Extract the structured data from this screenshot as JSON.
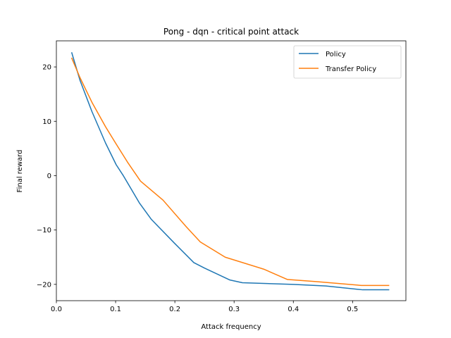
{
  "chart_data": {
    "type": "line",
    "title": "Pong - dqn - critical point attack",
    "xlabel": "Attack frequency",
    "ylabel": "Final reward",
    "xlim": [
      0.0,
      0.59
    ],
    "ylim": [
      -23,
      24.8
    ],
    "xticks": [
      0.0,
      0.1,
      0.2,
      0.3,
      0.4,
      0.5
    ],
    "xtick_labels": [
      "0.0",
      "0.1",
      "0.2",
      "0.3",
      "0.4",
      "0.5"
    ],
    "yticks": [
      -20,
      -10,
      0,
      10,
      20
    ],
    "ytick_labels": [
      "−20",
      "−10",
      "0",
      "10",
      "20"
    ],
    "grid": false,
    "legend_position": "top-right",
    "series": [
      {
        "name": "Policy",
        "color": "#1f77b4",
        "x": [
          0.026,
          0.04,
          0.06,
          0.083,
          0.101,
          0.113,
          0.14,
          0.16,
          0.2,
          0.232,
          0.25,
          0.293,
          0.314,
          0.4,
          0.455,
          0.517,
          0.561
        ],
        "y": [
          22.6,
          17.5,
          11.8,
          6.0,
          2.0,
          0.0,
          -5.0,
          -8.0,
          -12.5,
          -16.0,
          -17.0,
          -19.2,
          -19.7,
          -20.0,
          -20.3,
          -21.0,
          -21.0
        ]
      },
      {
        "name": "Transfer Policy",
        "color": "#ff7f0e",
        "x": [
          0.026,
          0.04,
          0.06,
          0.083,
          0.101,
          0.12,
          0.142,
          0.18,
          0.22,
          0.243,
          0.285,
          0.35,
          0.39,
          0.44,
          0.515,
          0.561
        ],
        "y": [
          21.6,
          18.0,
          13.5,
          9.0,
          5.8,
          2.5,
          -1.0,
          -4.5,
          -9.5,
          -12.2,
          -15.0,
          -17.2,
          -19.1,
          -19.5,
          -20.2,
          -20.2
        ]
      }
    ]
  }
}
